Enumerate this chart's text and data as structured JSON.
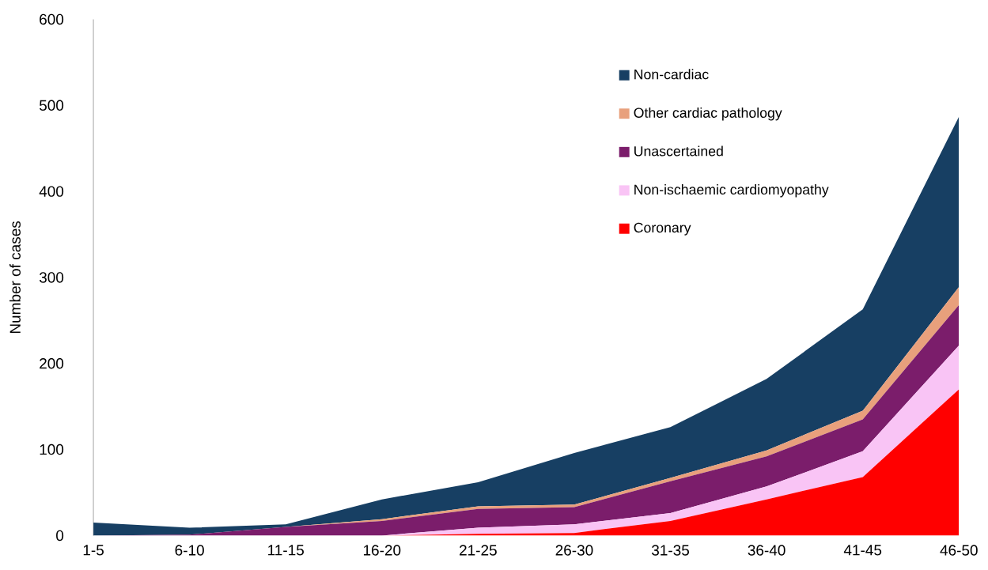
{
  "chart_data": {
    "type": "area",
    "stacked": true,
    "ylabel": "Number of cases",
    "categories": [
      "1-5",
      "6-10",
      "11-15",
      "16-20",
      "21-25",
      "26-30",
      "31-35",
      "36-40",
      "41-45",
      "46-50"
    ],
    "series": [
      {
        "name": "Coronary",
        "color": "#ff0000",
        "values": [
          0,
          0,
          0,
          0,
          2,
          3,
          17,
          42,
          68,
          170
        ]
      },
      {
        "name": "Non-ischaemic cardiomyopathy",
        "color": "#f9c4f5",
        "values": [
          0,
          0,
          0,
          0,
          7,
          10,
          9,
          15,
          30,
          51
        ]
      },
      {
        "name": "Unascertained",
        "color": "#7b1d6b",
        "values": [
          0,
          1,
          10,
          17,
          22,
          20,
          37,
          35,
          37,
          47
        ]
      },
      {
        "name": "Other cardiac pathology",
        "color": "#e8a07c",
        "values": [
          0,
          0,
          0,
          2,
          3,
          3,
          4,
          7,
          10,
          21
        ]
      },
      {
        "name": "Non-cardiac",
        "color": "#173f63",
        "values": [
          15,
          8,
          3,
          23,
          28,
          60,
          59,
          83,
          118,
          198
        ]
      }
    ],
    "ylim": [
      0,
      600
    ],
    "yticks": [
      0,
      100,
      200,
      300,
      400,
      500,
      600
    ],
    "legend": "top right",
    "grid": false
  }
}
